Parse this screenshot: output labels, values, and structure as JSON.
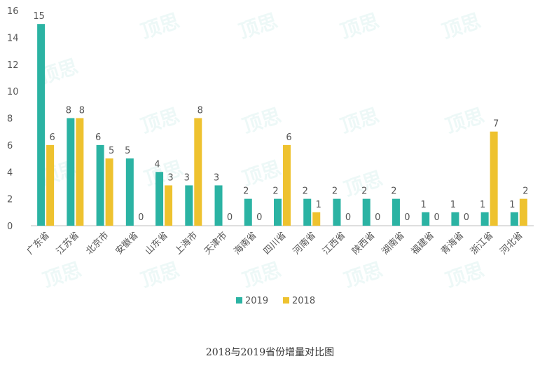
{
  "caption": "2018与2019省份增量对比图",
  "watermark": "顶思",
  "colors": {
    "series_2019": "#2bb3a3",
    "series_2018": "#eec22f",
    "axis": "#bfbfbf",
    "text": "#555555"
  },
  "chart_data": {
    "type": "bar",
    "title": "",
    "xlabel": "",
    "ylabel": "",
    "ylim": [
      0,
      16
    ],
    "yticks": [
      0,
      2,
      4,
      6,
      8,
      10,
      12,
      14,
      16
    ],
    "grid": false,
    "legend_position": "bottom",
    "categories": [
      "广东省",
      "江苏省",
      "北京市",
      "安徽省",
      "山东省",
      "上海市",
      "天津市",
      "海南省",
      "四川省",
      "河南省",
      "江西省",
      "陕西省",
      "湖南省",
      "福建省",
      "青海省",
      "浙江省",
      "河北省"
    ],
    "series": [
      {
        "name": "2019",
        "values": [
          15,
          8,
          6,
          5,
          4,
          3,
          3,
          2,
          2,
          2,
          2,
          2,
          2,
          1,
          1,
          1,
          1
        ]
      },
      {
        "name": "2018",
        "values": [
          6,
          8,
          5,
          0,
          3,
          8,
          0,
          0,
          6,
          1,
          0,
          0,
          0,
          0,
          0,
          7,
          2
        ]
      }
    ]
  }
}
